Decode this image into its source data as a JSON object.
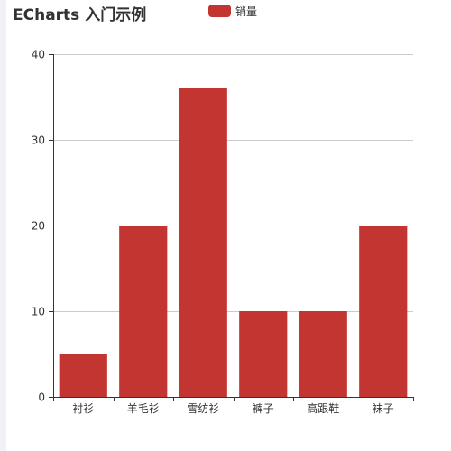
{
  "colors": {
    "bar": "#c23531",
    "grid": "#cccccc",
    "axis": "#333333",
    "text": "#333333"
  },
  "chart_data": {
    "type": "bar",
    "title": "ECharts 入门示例",
    "legend": [
      "销量"
    ],
    "legend_position": "top-center",
    "categories": [
      "衬衫",
      "羊毛衫",
      "雪纺衫",
      "裤子",
      "高跟鞋",
      "袜子"
    ],
    "series": [
      {
        "name": "销量",
        "values": [
          5,
          20,
          36,
          10,
          10,
          20
        ]
      }
    ],
    "xlabel": "",
    "ylabel": "",
    "ylim": [
      0,
      40
    ],
    "yticks": [
      0,
      10,
      20,
      30,
      40
    ],
    "grid": true
  }
}
